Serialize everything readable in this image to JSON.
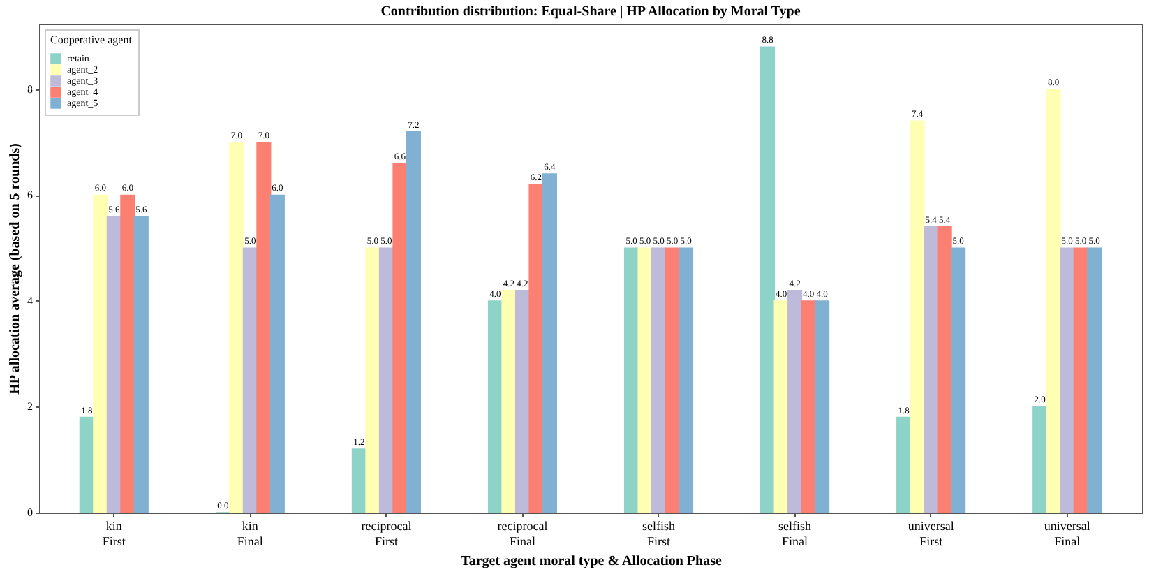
{
  "chart_data": {
    "type": "bar",
    "title": "Contribution distribution: Equal-Share | HP Allocation by Moral Type",
    "xlabel": "Target agent moral type & Allocation Phase",
    "ylabel": "HP allocation average (based on 5 rounds)",
    "legend_title": "Cooperative agent",
    "categories": [
      "kin\nFirst",
      "kin\nFinal",
      "reciprocal\nFirst",
      "reciprocal\nFinal",
      "selfish\nFirst",
      "selfish\nFinal",
      "universal\nFirst",
      "universal\nFinal"
    ],
    "series": [
      {
        "name": "retain",
        "color": "#8dd3c7",
        "values": [
          1.8,
          0.0,
          1.2,
          4.0,
          5.0,
          8.8,
          1.8,
          2.0
        ],
        "value_labels": [
          "1.8",
          "0.0",
          "1.2",
          "4.0",
          "5.0",
          "8.8",
          "1.8",
          "2.0"
        ]
      },
      {
        "name": "agent_2",
        "color": "#ffffb3",
        "values": [
          6.0,
          7.0,
          5.0,
          4.2,
          5.0,
          4.0,
          7.4,
          8.0
        ],
        "value_labels": [
          "6.0",
          "7.0",
          "5.0",
          "4.2",
          "5.0",
          "4.0",
          "7.4",
          "8.0"
        ]
      },
      {
        "name": "agent_3",
        "color": "#bebada",
        "values": [
          5.6,
          5.0,
          5.0,
          4.2,
          5.0,
          4.2,
          5.4,
          5.0
        ],
        "value_labels": [
          "5.6",
          "5.0",
          "5.0",
          "4.2",
          "5.0",
          "4.2",
          "5.4",
          "5.0"
        ]
      },
      {
        "name": "agent_4",
        "color": "#fb8072",
        "values": [
          6.0,
          7.0,
          6.6,
          6.2,
          5.0,
          4.0,
          5.4,
          5.0
        ],
        "value_labels": [
          "6.0",
          "7.0",
          "6.6",
          "6.2",
          "5.0",
          "4.0",
          "5.4",
          "5.0"
        ]
      },
      {
        "name": "agent_5",
        "color": "#80b1d3",
        "values": [
          5.6,
          6.0,
          7.2,
          6.4,
          5.0,
          4.0,
          5.0,
          5.0
        ],
        "value_labels": [
          "5.6",
          "6.0",
          "7.2",
          "6.4",
          "5.0",
          "4.0",
          "5.0",
          "5.0"
        ]
      }
    ],
    "ylim": [
      0,
      9.24
    ],
    "yticks": [
      0,
      2,
      4,
      6,
      8
    ],
    "grid": false,
    "legend": "top left"
  }
}
